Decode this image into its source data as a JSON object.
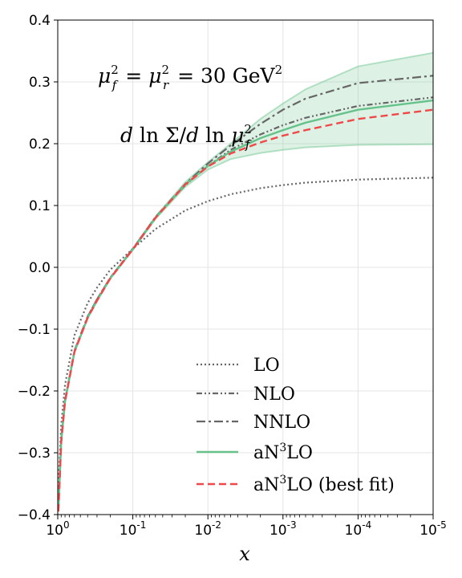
{
  "chart_data": {
    "type": "line",
    "xlabel": "x",
    "x_scale": "log",
    "x_reversed": true,
    "xlim": [
      1,
      1e-05
    ],
    "ylim": [
      -0.4,
      0.4
    ],
    "grid": true,
    "legend_position": "bottom-right",
    "x_tick_labels": [
      {
        "x": 1,
        "base": "10",
        "exp": "0"
      },
      {
        "x": 0.1,
        "base": "10",
        "exp": "-1"
      },
      {
        "x": 0.01,
        "base": "10",
        "exp": "-2"
      },
      {
        "x": 0.001,
        "base": "10",
        "exp": "-3"
      },
      {
        "x": 0.0001,
        "base": "10",
        "exp": "-4"
      },
      {
        "x": 1e-05,
        "base": "10",
        "exp": "-5"
      }
    ],
    "y_ticks": [
      -0.4,
      -0.3,
      -0.2,
      -0.1,
      0.0,
      0.1,
      0.2,
      0.3,
      0.4
    ],
    "y_tick_labels": [
      "−0.4",
      "−0.3",
      "−0.2",
      "−0.1",
      "0.0",
      "0.1",
      "0.2",
      "0.3",
      "0.4"
    ],
    "annotations": {
      "scale_label": "μ_f^2 = μ_r^2 = 30 GeV^2",
      "quantity_label": "d ln Σ / d ln μ_f^2"
    },
    "x": [
      0.98,
      0.9,
      0.8,
      0.6,
      0.4,
      0.3,
      0.2,
      0.1,
      0.05,
      0.02,
      0.01,
      0.005,
      0.002,
      0.001,
      0.0005,
      0.0001,
      1e-05
    ],
    "series": [
      {
        "name": "LO",
        "color": "#666666",
        "dash": "2,3",
        "width": 2.2,
        "values": [
          -0.355,
          -0.255,
          -0.19,
          -0.11,
          -0.058,
          -0.033,
          -0.004,
          0.03,
          0.062,
          0.092,
          0.107,
          0.118,
          0.128,
          0.133,
          0.137,
          0.142,
          0.145
        ]
      },
      {
        "name": "NLO",
        "color": "#666666",
        "dash": "7,3,2,3,2,3",
        "width": 2.2,
        "values": [
          -0.39,
          -0.28,
          -0.215,
          -0.135,
          -0.08,
          -0.052,
          -0.017,
          0.03,
          0.081,
          0.133,
          0.164,
          0.19,
          0.215,
          0.23,
          0.242,
          0.261,
          0.275
        ]
      },
      {
        "name": "NNLO",
        "color": "#666666",
        "dash": "11,4,3,4",
        "width": 2.2,
        "values": [
          -0.39,
          -0.28,
          -0.215,
          -0.135,
          -0.08,
          -0.052,
          -0.017,
          0.03,
          0.081,
          0.135,
          0.168,
          0.197,
          0.232,
          0.255,
          0.273,
          0.298,
          0.31
        ]
      },
      {
        "name": "aN³LO",
        "color": "#66c28a",
        "dash": "",
        "width": 2.4,
        "values": [
          -0.395,
          -0.283,
          -0.217,
          -0.137,
          -0.082,
          -0.054,
          -0.018,
          0.029,
          0.08,
          0.134,
          0.164,
          0.187,
          0.209,
          0.222,
          0.234,
          0.255,
          0.27
        ]
      },
      {
        "name": "aN³LO (best fit)",
        "color": "#f04848",
        "dash": "9,5",
        "width": 2.4,
        "values": [
          -0.395,
          -0.283,
          -0.217,
          -0.137,
          -0.082,
          -0.054,
          -0.018,
          0.029,
          0.08,
          0.134,
          0.163,
          0.184,
          0.202,
          0.213,
          0.222,
          0.24,
          0.255
        ]
      }
    ],
    "band": {
      "of_series": "aN³LO",
      "color": "#66c28a",
      "upper": [
        -0.395,
        -0.283,
        -0.217,
        -0.137,
        -0.082,
        -0.054,
        -0.018,
        0.03,
        0.082,
        0.138,
        0.17,
        0.2,
        0.24,
        0.265,
        0.288,
        0.325,
        0.347
      ],
      "lower": [
        -0.395,
        -0.283,
        -0.217,
        -0.137,
        -0.082,
        -0.054,
        -0.018,
        0.028,
        0.078,
        0.13,
        0.158,
        0.175,
        0.185,
        0.19,
        0.194,
        0.198,
        0.199
      ]
    }
  }
}
